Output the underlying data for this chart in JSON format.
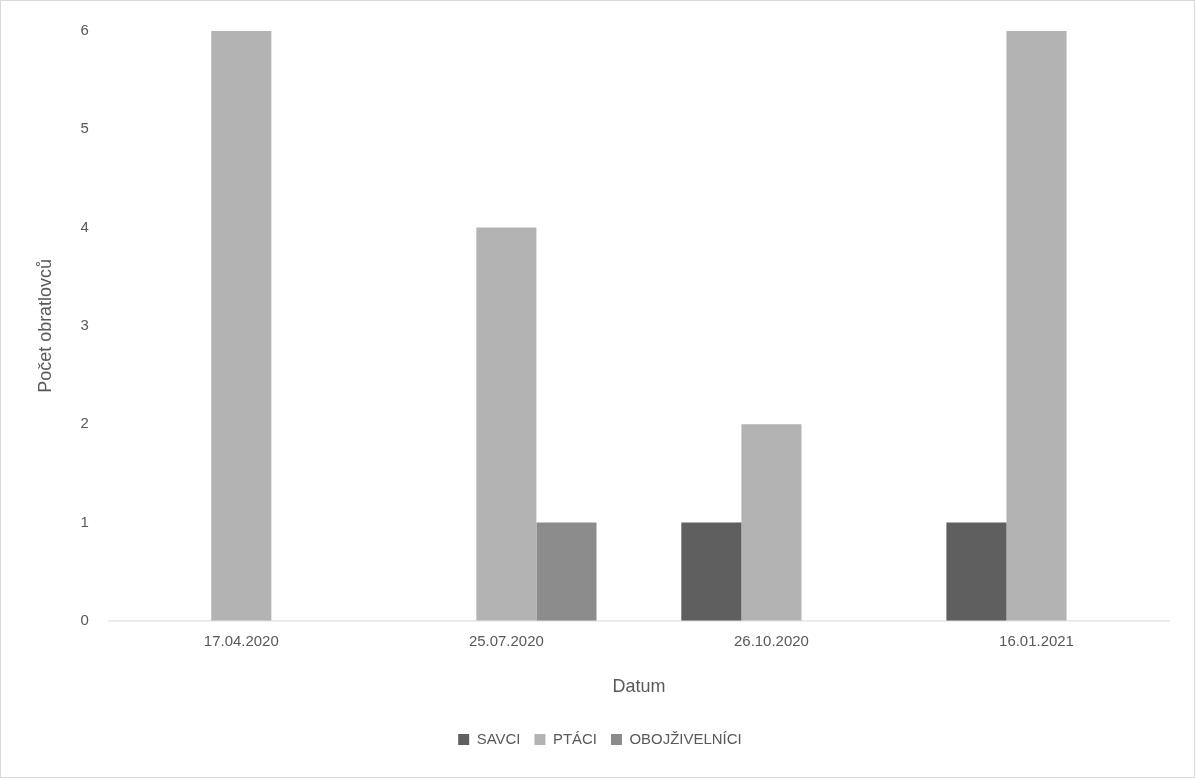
{
  "chart_data": {
    "type": "bar",
    "xlabel": "Datum",
    "ylabel": "Počet obratlovců",
    "categories": [
      "17.04.2020",
      "25.07.2020",
      "26.10.2020",
      "16.01.2021"
    ],
    "series": [
      {
        "name": "SAVCI",
        "color": "#5f5f5f",
        "values": [
          0,
          0,
          1,
          1
        ]
      },
      {
        "name": "PTÁCI",
        "color": "#b3b3b3",
        "values": [
          6,
          4,
          2,
          6
        ]
      },
      {
        "name": "OBOJŽIVELNÍCI",
        "color": "#8c8c8c",
        "values": [
          0,
          1,
          0,
          0
        ]
      }
    ],
    "ylim": [
      0,
      6
    ],
    "yticks": [
      0,
      1,
      2,
      3,
      4,
      5,
      6
    ],
    "grid": false,
    "legend": "bottom"
  }
}
